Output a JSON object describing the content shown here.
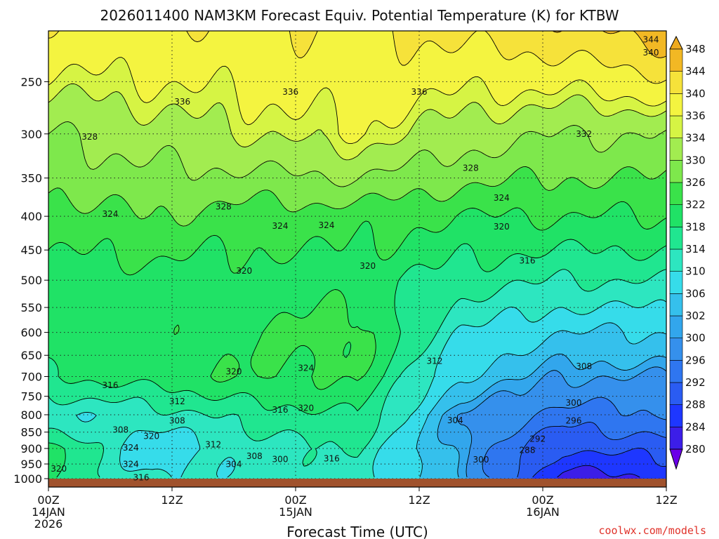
{
  "chart_data": {
    "type": "heatmap",
    "title": "2026011400 NAM3KM Forecast Equiv. Potential Temperature (K) for KTBW",
    "xlabel": "Forecast Time (UTC)",
    "ylabel": "",
    "x_ticks": [
      {
        "hour": 0,
        "lines": [
          "00Z",
          "14JAN",
          "2026"
        ]
      },
      {
        "hour": 12,
        "lines": [
          "12Z"
        ]
      },
      {
        "hour": 24,
        "lines": [
          "00Z",
          "15JAN"
        ]
      },
      {
        "hour": 36,
        "lines": [
          "12Z"
        ]
      },
      {
        "hour": 48,
        "lines": [
          "00Z",
          "16JAN"
        ]
      },
      {
        "hour": 60,
        "lines": [
          "12Z"
        ]
      }
    ],
    "xlim": [
      0,
      60
    ],
    "y_ticks": [
      250,
      300,
      350,
      400,
      450,
      500,
      550,
      600,
      650,
      700,
      750,
      800,
      850,
      900,
      950,
      1000
    ],
    "ylim": [
      1000,
      200
    ],
    "y_scale": "log",
    "grid": true,
    "colorbar": {
      "levels": [
        280,
        284,
        288,
        292,
        296,
        300,
        302,
        306,
        310,
        314,
        318,
        322,
        326,
        330,
        334,
        336,
        340,
        344,
        348
      ],
      "colors": [
        "#6a00e8",
        "#3c1ee8",
        "#1e37ff",
        "#2a5cf2",
        "#2f76f0",
        "#3590ec",
        "#32a6ec",
        "#35c0ec",
        "#36dcea",
        "#2de6c0",
        "#20e690",
        "#20e266",
        "#3ae24a",
        "#7ee84c",
        "#a2ec50",
        "#d6f444",
        "#f4f440",
        "#f6e23a",
        "#f2b824",
        "#eeaa1e"
      ]
    },
    "contour_labels": [
      {
        "text": "344",
        "h": 58.5,
        "p": 216
      },
      {
        "text": "340",
        "h": 58.5,
        "p": 226
      },
      {
        "text": "336",
        "h": 13,
        "p": 268
      },
      {
        "text": "336",
        "h": 23.5,
        "p": 259
      },
      {
        "text": "336",
        "h": 36,
        "p": 259
      },
      {
        "text": "332",
        "h": 52,
        "p": 300
      },
      {
        "text": "328",
        "h": 4,
        "p": 303
      },
      {
        "text": "328",
        "h": 41,
        "p": 338
      },
      {
        "text": "328",
        "h": 17,
        "p": 387
      },
      {
        "text": "324",
        "h": 6,
        "p": 397
      },
      {
        "text": "324",
        "h": 22.5,
        "p": 414
      },
      {
        "text": "324",
        "h": 27,
        "p": 413
      },
      {
        "text": "324",
        "h": 44,
        "p": 375
      },
      {
        "text": "320",
        "h": 44,
        "p": 415
      },
      {
        "text": "320",
        "h": 19,
        "p": 484
      },
      {
        "text": "320",
        "h": 31,
        "p": 476
      },
      {
        "text": "316",
        "h": 46.5,
        "p": 467
      },
      {
        "text": "312",
        "h": 37.5,
        "p": 663
      },
      {
        "text": "308",
        "h": 52,
        "p": 676
      },
      {
        "text": "320",
        "h": 18,
        "p": 688
      },
      {
        "text": "324",
        "h": 25,
        "p": 680
      },
      {
        "text": "316",
        "h": 6,
        "p": 722
      },
      {
        "text": "312",
        "h": 12.5,
        "p": 764
      },
      {
        "text": "316",
        "h": 22.5,
        "p": 786
      },
      {
        "text": "320",
        "h": 25,
        "p": 782
      },
      {
        "text": "300",
        "h": 51,
        "p": 767
      },
      {
        "text": "296",
        "h": 51,
        "p": 817
      },
      {
        "text": "304",
        "h": 39.5,
        "p": 816
      },
      {
        "text": "308",
        "h": 12.5,
        "p": 817
      },
      {
        "text": "308",
        "h": 7,
        "p": 843
      },
      {
        "text": "320",
        "h": 10,
        "p": 862
      },
      {
        "text": "292",
        "h": 47.5,
        "p": 871
      },
      {
        "text": "312",
        "h": 16,
        "p": 888
      },
      {
        "text": "324",
        "h": 8,
        "p": 898
      },
      {
        "text": "288",
        "h": 46.5,
        "p": 905
      },
      {
        "text": "308",
        "h": 20,
        "p": 925
      },
      {
        "text": "300",
        "h": 22.5,
        "p": 935
      },
      {
        "text": "316",
        "h": 27.5,
        "p": 932
      },
      {
        "text": "300",
        "h": 42,
        "p": 936
      },
      {
        "text": "304",
        "h": 18,
        "p": 951
      },
      {
        "text": "324",
        "h": 8,
        "p": 951
      },
      {
        "text": "320",
        "h": 1,
        "p": 966
      },
      {
        "text": "316",
        "h": 9,
        "p": 996
      }
    ],
    "field_description_rows": [
      {
        "p": 200,
        "values": [
          340,
          340,
          340,
          340,
          342,
          344,
          348
        ]
      },
      {
        "p": 300,
        "values": [
          330,
          332,
          334,
          336,
          332,
          330,
          330
        ]
      },
      {
        "p": 400,
        "values": [
          324,
          326,
          324,
          324,
          322,
          322,
          322
        ]
      },
      {
        "p": 500,
        "values": [
          320,
          320,
          320,
          320,
          316,
          314,
          314
        ]
      },
      {
        "p": 600,
        "values": [
          320,
          320,
          322,
          324,
          310,
          306,
          306
        ]
      },
      {
        "p": 700,
        "values": [
          318,
          320,
          322,
          322,
          306,
          300,
          300
        ]
      },
      {
        "p": 800,
        "values": [
          310,
          312,
          316,
          318,
          300,
          294,
          296
        ]
      },
      {
        "p": 900,
        "values": [
          320,
          306,
          312,
          314,
          300,
          288,
          290
        ]
      },
      {
        "p": 1000,
        "values": [
          318,
          310,
          312,
          312,
          302,
          282,
          284
        ]
      }
    ]
  },
  "credit": "coolwx.com/models",
  "colors": {
    "ground": "#a0522d",
    "credit": "#e0322a",
    "grid": "#222222"
  }
}
